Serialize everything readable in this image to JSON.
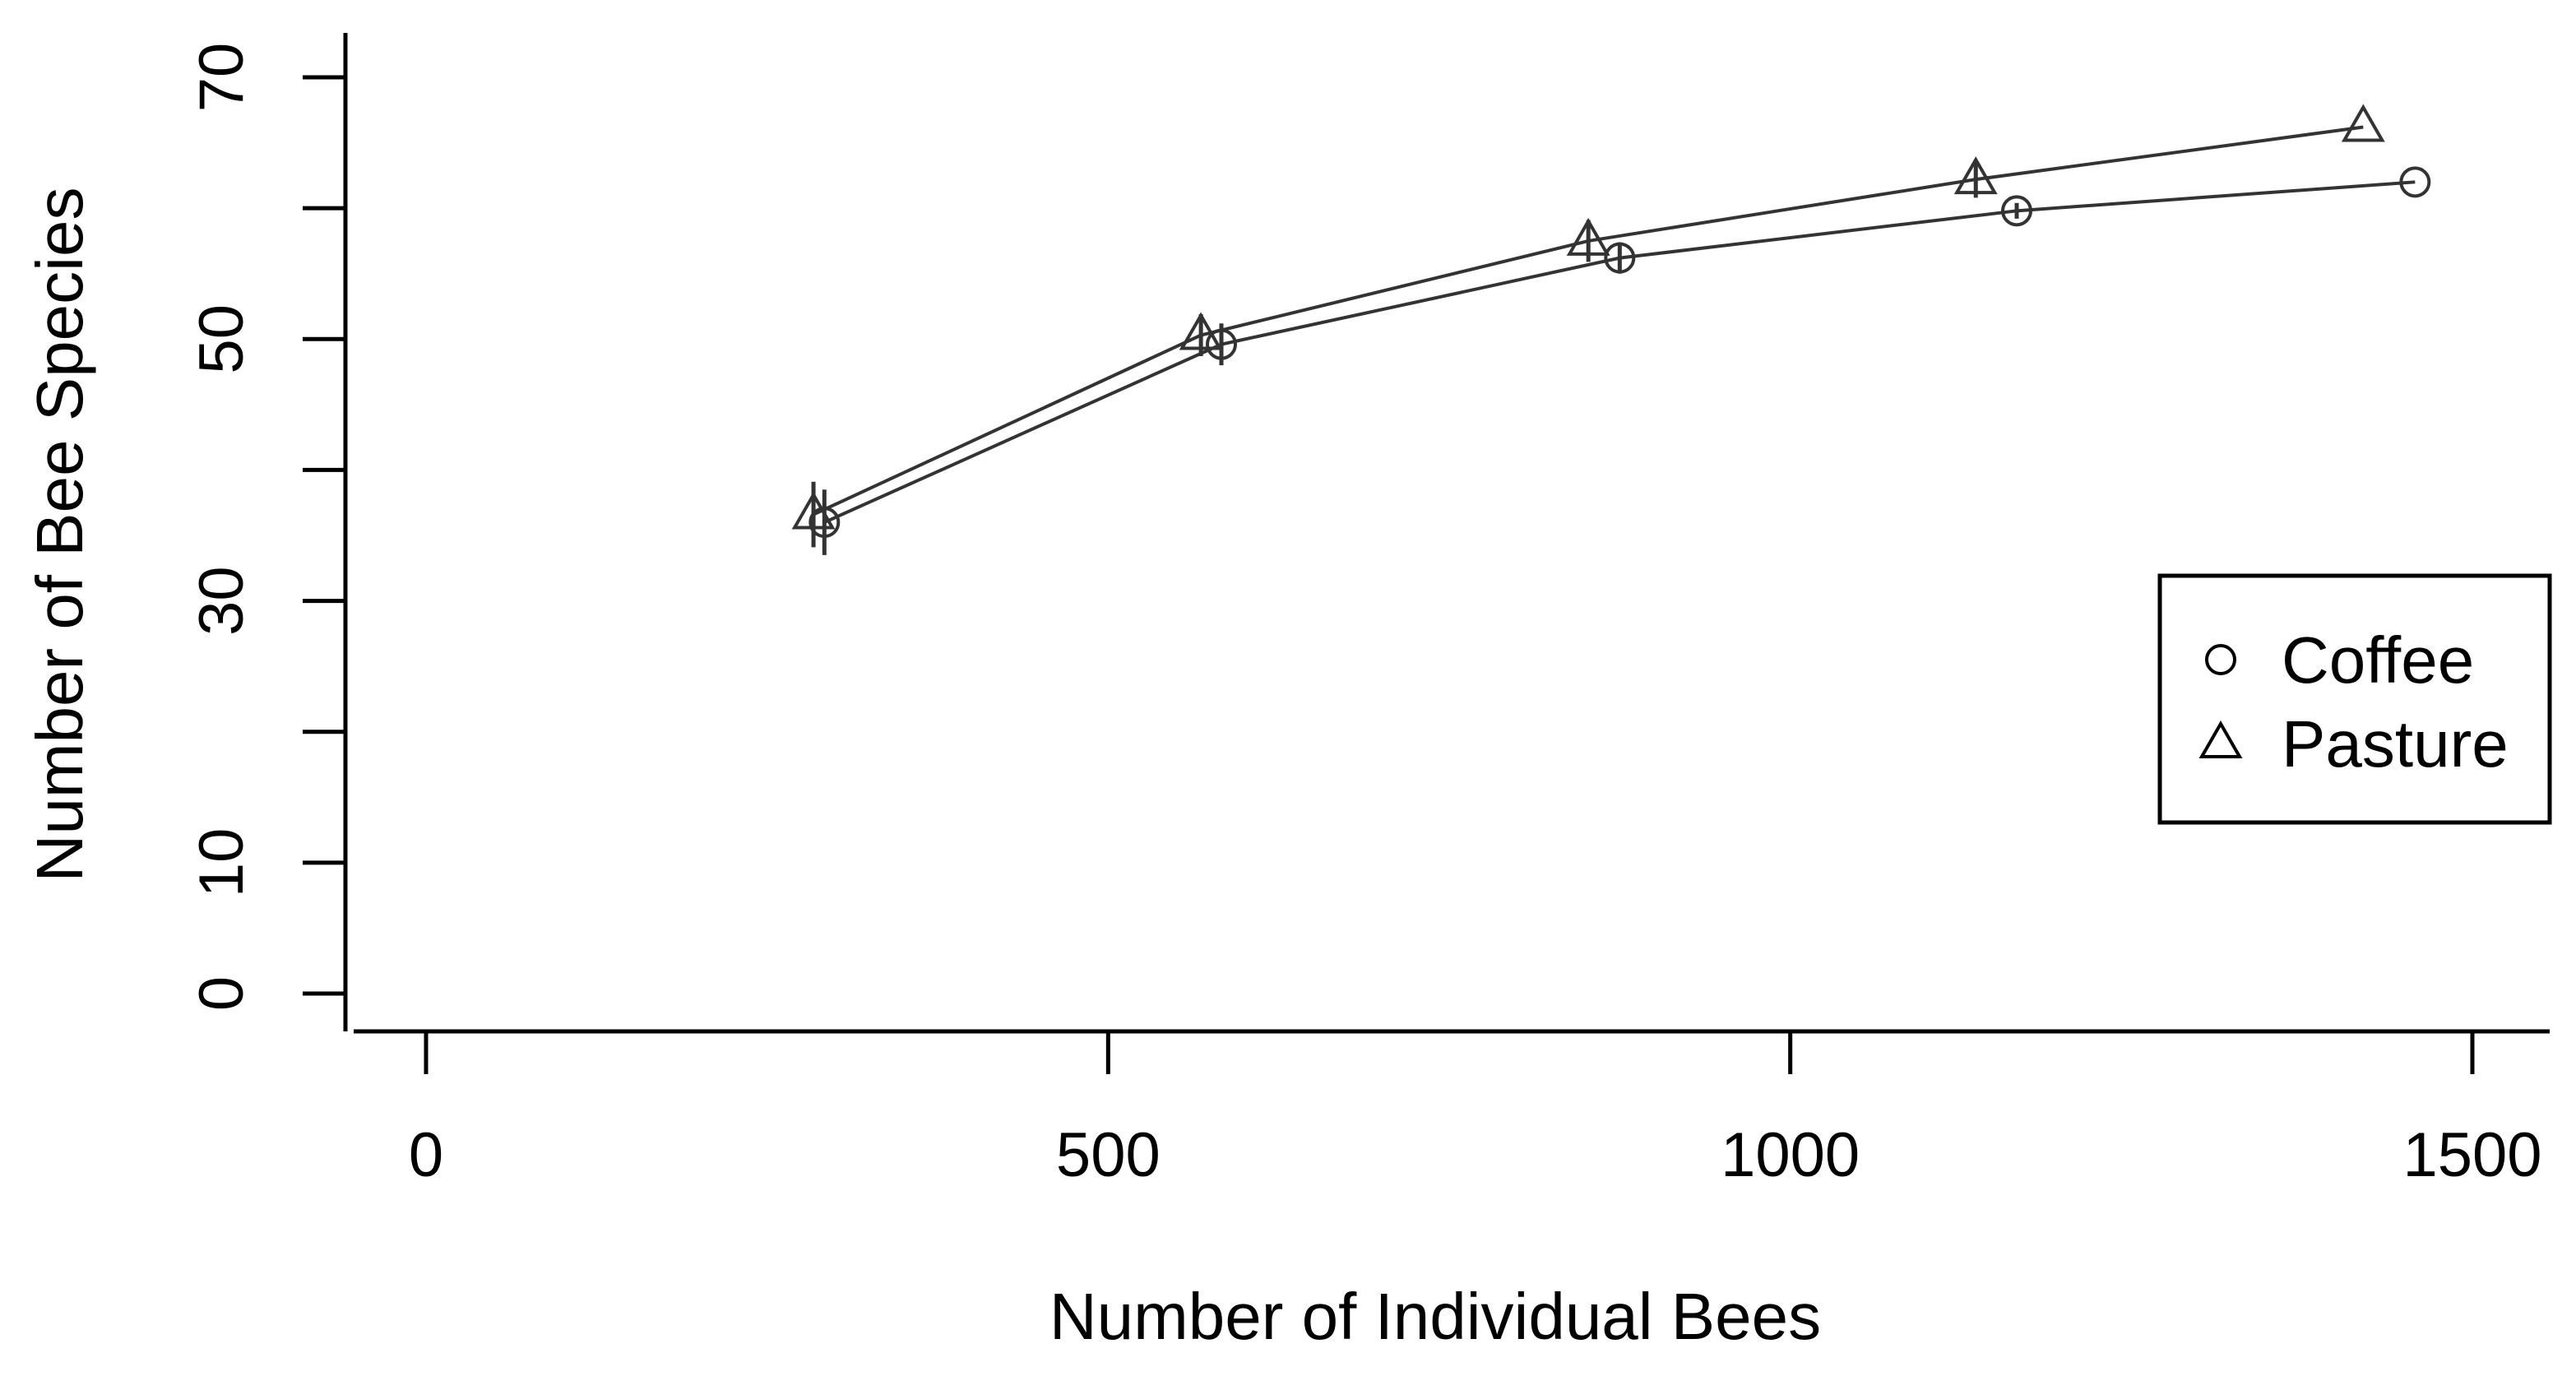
{
  "chart_data": {
    "type": "line",
    "xlabel": "Number of Individual Bees",
    "ylabel": "Number of Bee Species",
    "xlim": [
      0,
      1500
    ],
    "ylim": [
      0,
      70
    ],
    "xticks": [
      0,
      500,
      1000,
      1500
    ],
    "yticks": [
      0,
      10,
      30,
      50,
      70
    ],
    "yticks_minor": [
      20,
      40,
      60
    ],
    "grid": false,
    "legend_position": "right",
    "line_color": "#333333",
    "series": [
      {
        "name": "Coffee",
        "marker": "circle",
        "points": [
          {
            "x": 292,
            "y": 36,
            "err": 2.5
          },
          {
            "x": 583,
            "y": 49.6,
            "err": 1.6
          },
          {
            "x": 875,
            "y": 56.2,
            "err": 1.2
          },
          {
            "x": 1166,
            "y": 59.8,
            "err": 0.6
          },
          {
            "x": 1458,
            "y": 62,
            "err": 0
          }
        ]
      },
      {
        "name": "Pasture",
        "marker": "triangle",
        "points": [
          {
            "x": 284,
            "y": 36.6,
            "err": 2.5
          },
          {
            "x": 568,
            "y": 50.3,
            "err": 1.6
          },
          {
            "x": 852,
            "y": 57.5,
            "err": 1.6
          },
          {
            "x": 1136,
            "y": 62.2,
            "err": 1.4
          },
          {
            "x": 1420,
            "y": 66.2,
            "err": 0
          }
        ]
      }
    ]
  }
}
